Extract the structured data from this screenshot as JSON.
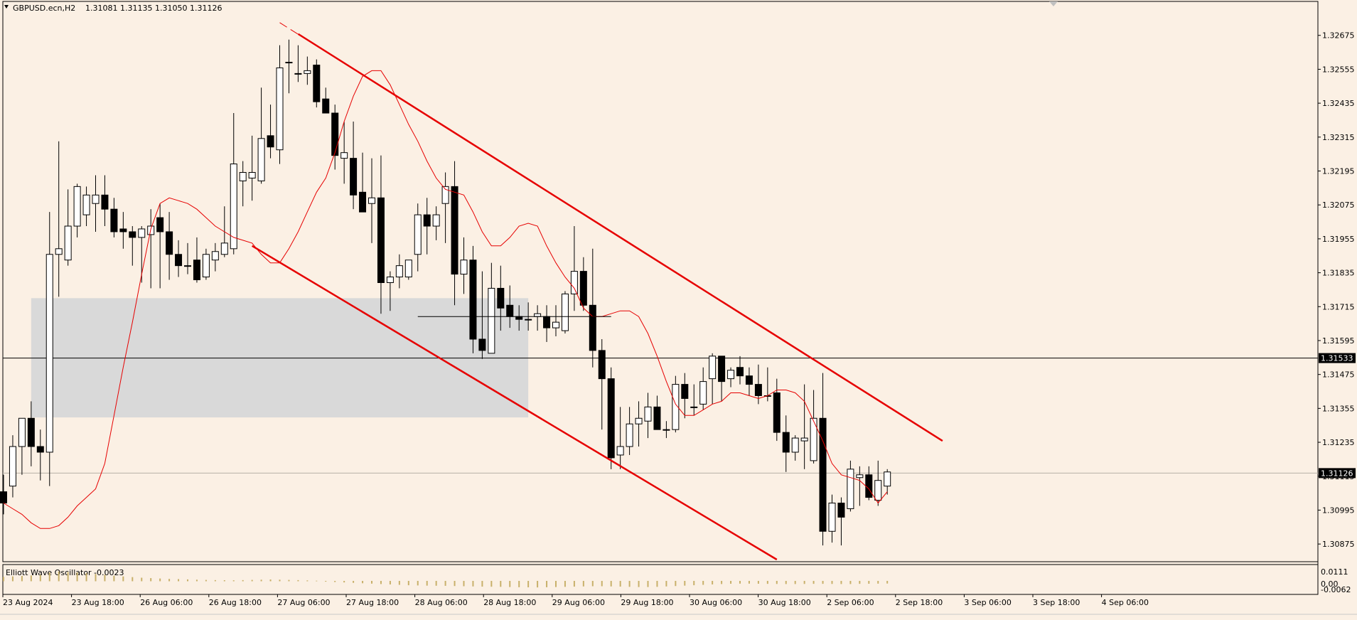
{
  "header": {
    "title": "GBPUSD.ecn,H2",
    "ohlc": "1.31081 1.31135 1.31050 1.31126"
  },
  "indicator": {
    "label": "Elliott Wave Oscillator -0.0023",
    "axis_ticks": [
      "0.0111",
      "0.00",
      "-0.0062"
    ]
  },
  "colors": {
    "background": "#fbf0e4",
    "candle": "#000000",
    "trendline": "#e60000",
    "moving_average": "#e60000",
    "zone": "#d9d9d9",
    "oscillator_bar": "#c8b06a"
  },
  "chart_data": {
    "type": "candlestick",
    "symbol": "GBPUSD.ecn",
    "timeframe": "H2",
    "y_range": [
      1.3082,
      1.3278
    ],
    "y_ticks": [
      "1.32675",
      "1.32555",
      "1.32435",
      "1.32315",
      "1.32195",
      "1.32075",
      "1.31955",
      "1.31835",
      "1.31715",
      "1.31595",
      "1.31475",
      "1.31355",
      "1.31235",
      "1.31115",
      "1.30995",
      "1.30875"
    ],
    "price_labels": {
      "horizontal_line": "1.31533",
      "current": "1.31126"
    },
    "x_labels": [
      "23 Aug 2024",
      "23 Aug 18:00",
      "26 Aug 06:00",
      "26 Aug 18:00",
      "27 Aug 06:00",
      "27 Aug 18:00",
      "28 Aug 06:00",
      "28 Aug 18:00",
      "29 Aug 06:00",
      "29 Aug 18:00",
      "30 Aug 06:00",
      "30 Aug 18:00",
      "2 Sep 06:00",
      "2 Sep 18:00",
      "3 Sep 06:00",
      "3 Sep 18:00",
      "4 Sep 06:00"
    ],
    "candles": [
      {
        "o": 1.3106,
        "h": 1.3112,
        "l": 1.3098,
        "c": 1.3102
      },
      {
        "o": 1.3108,
        "h": 1.3126,
        "l": 1.3104,
        "c": 1.3122
      },
      {
        "o": 1.3122,
        "h": 1.3132,
        "l": 1.3112,
        "c": 1.3132
      },
      {
        "o": 1.3132,
        "h": 1.3138,
        "l": 1.3115,
        "c": 1.3122
      },
      {
        "o": 1.3122,
        "h": 1.3128,
        "l": 1.311,
        "c": 1.312
      },
      {
        "o": 1.312,
        "h": 1.3205,
        "l": 1.3108,
        "c": 1.319
      },
      {
        "o": 1.319,
        "h": 1.323,
        "l": 1.3175,
        "c": 1.3192
      },
      {
        "o": 1.3188,
        "h": 1.3213,
        "l": 1.3186,
        "c": 1.32
      },
      {
        "o": 1.32,
        "h": 1.3215,
        "l": 1.3196,
        "c": 1.3214
      },
      {
        "o": 1.3204,
        "h": 1.3214,
        "l": 1.32,
        "c": 1.3211
      },
      {
        "o": 1.3208,
        "h": 1.3218,
        "l": 1.3198,
        "c": 1.3211
      },
      {
        "o": 1.3211,
        "h": 1.3218,
        "l": 1.32,
        "c": 1.3206
      },
      {
        "o": 1.3206,
        "h": 1.321,
        "l": 1.3196,
        "c": 1.3198
      },
      {
        "o": 1.3199,
        "h": 1.3205,
        "l": 1.3192,
        "c": 1.3198
      },
      {
        "o": 1.3198,
        "h": 1.32,
        "l": 1.3186,
        "c": 1.3196
      },
      {
        "o": 1.3196,
        "h": 1.32,
        "l": 1.318,
        "c": 1.3199
      },
      {
        "o": 1.3197,
        "h": 1.3206,
        "l": 1.3178,
        "c": 1.32
      },
      {
        "o": 1.3203,
        "h": 1.3208,
        "l": 1.3178,
        "c": 1.3198
      },
      {
        "o": 1.3198,
        "h": 1.3205,
        "l": 1.3181,
        "c": 1.319
      },
      {
        "o": 1.319,
        "h": 1.3195,
        "l": 1.3182,
        "c": 1.3186
      },
      {
        "o": 1.3186,
        "h": 1.3194,
        "l": 1.3183,
        "c": 1.3186
      },
      {
        "o": 1.3188,
        "h": 1.3196,
        "l": 1.318,
        "c": 1.3181
      },
      {
        "o": 1.3182,
        "h": 1.3192,
        "l": 1.3181,
        "c": 1.319
      },
      {
        "o": 1.3188,
        "h": 1.3194,
        "l": 1.3184,
        "c": 1.3191
      },
      {
        "o": 1.319,
        "h": 1.3207,
        "l": 1.3189,
        "c": 1.3194
      },
      {
        "o": 1.3192,
        "h": 1.324,
        "l": 1.319,
        "c": 1.3222
      },
      {
        "o": 1.3216,
        "h": 1.3223,
        "l": 1.3207,
        "c": 1.3219
      },
      {
        "o": 1.3217,
        "h": 1.3232,
        "l": 1.3209,
        "c": 1.3219
      },
      {
        "o": 1.3216,
        "h": 1.3249,
        "l": 1.3215,
        "c": 1.3231
      },
      {
        "o": 1.3232,
        "h": 1.3243,
        "l": 1.3224,
        "c": 1.3228
      },
      {
        "o": 1.3227,
        "h": 1.3264,
        "l": 1.3222,
        "c": 1.3256
      },
      {
        "o": 1.3258,
        "h": 1.3266,
        "l": 1.3247,
        "c": 1.3258
      },
      {
        "o": 1.3254,
        "h": 1.3264,
        "l": 1.3251,
        "c": 1.3254
      },
      {
        "o": 1.3254,
        "h": 1.326,
        "l": 1.325,
        "c": 1.3255
      },
      {
        "o": 1.3257,
        "h": 1.3259,
        "l": 1.3242,
        "c": 1.3244
      },
      {
        "o": 1.3245,
        "h": 1.3249,
        "l": 1.324,
        "c": 1.324
      },
      {
        "o": 1.324,
        "h": 1.3243,
        "l": 1.322,
        "c": 1.3225
      },
      {
        "o": 1.3224,
        "h": 1.3237,
        "l": 1.3215,
        "c": 1.3226
      },
      {
        "o": 1.3224,
        "h": 1.3237,
        "l": 1.3206,
        "c": 1.3211
      },
      {
        "o": 1.3212,
        "h": 1.3226,
        "l": 1.3205,
        "c": 1.3205
      },
      {
        "o": 1.3208,
        "h": 1.3224,
        "l": 1.3194,
        "c": 1.321
      },
      {
        "o": 1.321,
        "h": 1.3225,
        "l": 1.3169,
        "c": 1.318
      },
      {
        "o": 1.318,
        "h": 1.3184,
        "l": 1.317,
        "c": 1.3182
      },
      {
        "o": 1.3182,
        "h": 1.319,
        "l": 1.3178,
        "c": 1.3186
      },
      {
        "o": 1.3182,
        "h": 1.3188,
        "l": 1.3181,
        "c": 1.3188
      },
      {
        "o": 1.319,
        "h": 1.3208,
        "l": 1.3184,
        "c": 1.3204
      },
      {
        "o": 1.3204,
        "h": 1.321,
        "l": 1.319,
        "c": 1.32
      },
      {
        "o": 1.32,
        "h": 1.3207,
        "l": 1.3195,
        "c": 1.3204
      },
      {
        "o": 1.3208,
        "h": 1.3219,
        "l": 1.3194,
        "c": 1.3214
      },
      {
        "o": 1.3214,
        "h": 1.3223,
        "l": 1.3172,
        "c": 1.3183
      },
      {
        "o": 1.3183,
        "h": 1.3196,
        "l": 1.3176,
        "c": 1.3188
      },
      {
        "o": 1.3188,
        "h": 1.3193,
        "l": 1.3155,
        "c": 1.316
      },
      {
        "o": 1.316,
        "h": 1.3184,
        "l": 1.3153,
        "c": 1.3156
      },
      {
        "o": 1.3155,
        "h": 1.3187,
        "l": 1.3155,
        "c": 1.3178
      },
      {
        "o": 1.3178,
        "h": 1.3186,
        "l": 1.3163,
        "c": 1.3171
      },
      {
        "o": 1.3172,
        "h": 1.3179,
        "l": 1.3164,
        "c": 1.3168
      },
      {
        "o": 1.3168,
        "h": 1.3172,
        "l": 1.3163,
        "c": 1.3167
      },
      {
        "o": 1.3167,
        "h": 1.3173,
        "l": 1.3163,
        "c": 1.3167
      },
      {
        "o": 1.3168,
        "h": 1.3172,
        "l": 1.3163,
        "c": 1.3169
      },
      {
        "o": 1.3168,
        "h": 1.3172,
        "l": 1.3159,
        "c": 1.3164
      },
      {
        "o": 1.3164,
        "h": 1.3172,
        "l": 1.3161,
        "c": 1.3166
      },
      {
        "o": 1.3163,
        "h": 1.3177,
        "l": 1.3162,
        "c": 1.3176
      },
      {
        "o": 1.3176,
        "h": 1.32,
        "l": 1.317,
        "c": 1.3184
      },
      {
        "o": 1.3184,
        "h": 1.3189,
        "l": 1.317,
        "c": 1.3172
      },
      {
        "o": 1.3172,
        "h": 1.3192,
        "l": 1.315,
        "c": 1.3156
      },
      {
        "o": 1.3156,
        "h": 1.316,
        "l": 1.3128,
        "c": 1.3146
      },
      {
        "o": 1.3146,
        "h": 1.315,
        "l": 1.3114,
        "c": 1.3118
      },
      {
        "o": 1.3119,
        "h": 1.3136,
        "l": 1.3114,
        "c": 1.3122
      },
      {
        "o": 1.3122,
        "h": 1.3136,
        "l": 1.3119,
        "c": 1.313
      },
      {
        "o": 1.313,
        "h": 1.3138,
        "l": 1.3122,
        "c": 1.3132
      },
      {
        "o": 1.3131,
        "h": 1.3141,
        "l": 1.3125,
        "c": 1.3136
      },
      {
        "o": 1.3136,
        "h": 1.314,
        "l": 1.3128,
        "c": 1.3128
      },
      {
        "o": 1.3128,
        "h": 1.3131,
        "l": 1.3125,
        "c": 1.3128
      },
      {
        "o": 1.3128,
        "h": 1.3147,
        "l": 1.3127,
        "c": 1.3144
      },
      {
        "o": 1.3144,
        "h": 1.3148,
        "l": 1.3132,
        "c": 1.3139
      },
      {
        "o": 1.3136,
        "h": 1.3144,
        "l": 1.3133,
        "c": 1.3136
      },
      {
        "o": 1.3137,
        "h": 1.315,
        "l": 1.3135,
        "c": 1.3145
      },
      {
        "o": 1.3146,
        "h": 1.3155,
        "l": 1.3137,
        "c": 1.3154
      },
      {
        "o": 1.3154,
        "h": 1.3154,
        "l": 1.3138,
        "c": 1.3145
      },
      {
        "o": 1.3146,
        "h": 1.315,
        "l": 1.3143,
        "c": 1.3149
      },
      {
        "o": 1.315,
        "h": 1.3154,
        "l": 1.3144,
        "c": 1.3147
      },
      {
        "o": 1.3147,
        "h": 1.315,
        "l": 1.314,
        "c": 1.3144
      },
      {
        "o": 1.3144,
        "h": 1.3151,
        "l": 1.3137,
        "c": 1.314
      },
      {
        "o": 1.314,
        "h": 1.315,
        "l": 1.3138,
        "c": 1.314
      },
      {
        "o": 1.3141,
        "h": 1.3146,
        "l": 1.3124,
        "c": 1.3127
      },
      {
        "o": 1.3127,
        "h": 1.3133,
        "l": 1.3113,
        "c": 1.312
      },
      {
        "o": 1.312,
        "h": 1.3126,
        "l": 1.3117,
        "c": 1.3125
      },
      {
        "o": 1.3124,
        "h": 1.3144,
        "l": 1.3114,
        "c": 1.3125
      },
      {
        "o": 1.3117,
        "h": 1.3142,
        "l": 1.3116,
        "c": 1.3132
      },
      {
        "o": 1.3132,
        "h": 1.3148,
        "l": 1.3087,
        "c": 1.3092
      },
      {
        "o": 1.3092,
        "h": 1.3105,
        "l": 1.3088,
        "c": 1.3102
      },
      {
        "o": 1.3102,
        "h": 1.3104,
        "l": 1.3087,
        "c": 1.3097
      },
      {
        "o": 1.31,
        "h": 1.3117,
        "l": 1.3099,
        "c": 1.3114
      },
      {
        "o": 1.3111,
        "h": 1.3115,
        "l": 1.3101,
        "c": 1.3112
      },
      {
        "o": 1.3112,
        "h": 1.3115,
        "l": 1.3103,
        "c": 1.3104
      },
      {
        "o": 1.3103,
        "h": 1.3117,
        "l": 1.3101,
        "c": 1.311
      },
      {
        "o": 1.3108,
        "h": 1.3114,
        "l": 1.3105,
        "c": 1.3113
      }
    ],
    "moving_average": [
      1.3102,
      1.31,
      1.3098,
      1.3095,
      1.3093,
      1.3093,
      1.3094,
      1.3097,
      1.3101,
      1.3104,
      1.3107,
      1.3116,
      1.3133,
      1.315,
      1.3166,
      1.3183,
      1.3199,
      1.3208,
      1.321,
      1.3209,
      1.3208,
      1.3206,
      1.3203,
      1.32,
      1.3198,
      1.3196,
      1.3195,
      1.3194,
      1.319,
      1.3187,
      1.3187,
      1.3192,
      1.3198,
      1.3205,
      1.3212,
      1.3217,
      1.3226,
      1.3237,
      1.3246,
      1.3253,
      1.3255,
      1.3255,
      1.325,
      1.3243,
      1.3236,
      1.323,
      1.3223,
      1.3217,
      1.3213,
      1.3212,
      1.3211,
      1.3205,
      1.3198,
      1.3193,
      1.3193,
      1.3196,
      1.32,
      1.3201,
      1.32,
      1.3193,
      1.3187,
      1.3182,
      1.3178,
      1.3171,
      1.3168,
      1.3168,
      1.3169,
      1.317,
      1.317,
      1.3168,
      1.3162,
      1.3154,
      1.3145,
      1.3137,
      1.3133,
      1.3133,
      1.3135,
      1.3137,
      1.3138,
      1.3141,
      1.3141,
      1.314,
      1.3139,
      1.314,
      1.3142,
      1.3142,
      1.3141,
      1.3138,
      1.3131,
      1.3124,
      1.3116,
      1.3112,
      1.3111,
      1.311,
      1.3107,
      1.3102,
      1.3106
    ],
    "oscillator": [
      0.004,
      0.0045,
      0.005,
      0.0055,
      0.006,
      0.0085,
      0.0095,
      0.009,
      0.0085,
      0.0078,
      0.007,
      0.0062,
      0.0052,
      0.0045,
      0.0038,
      0.0032,
      0.0028,
      0.0024,
      0.002,
      0.0018,
      0.0015,
      0.0012,
      0.001,
      0.0008,
      0.0007,
      0.0006,
      0.0008,
      0.001,
      0.0012,
      0.0014,
      0.0012,
      0.001,
      0.0008,
      0.0005,
      0.0002,
      -0.0004,
      -0.0008,
      -0.0012,
      -0.0016,
      -0.002,
      -0.0024,
      -0.0028,
      -0.0032,
      -0.0036,
      -0.004,
      -0.0042,
      -0.0044,
      -0.0045,
      -0.0046,
      -0.0048,
      -0.005,
      -0.0052,
      -0.0054,
      -0.0055,
      -0.0056,
      -0.0058,
      -0.006,
      -0.0061,
      -0.0062,
      -0.006,
      -0.0058,
      -0.0056,
      -0.0054,
      -0.0052,
      -0.005,
      -0.005,
      -0.0052,
      -0.0054,
      -0.0056,
      -0.0058,
      -0.0058,
      -0.0056,
      -0.0052,
      -0.0048,
      -0.0044,
      -0.004,
      -0.0036,
      -0.0032,
      -0.0028,
      -0.0025,
      -0.0024,
      -0.0024,
      -0.0025,
      -0.0026,
      -0.0027,
      -0.0028,
      -0.0028,
      -0.0027,
      -0.0026,
      -0.0026,
      -0.0027,
      -0.0028,
      -0.0028,
      -0.0026,
      -0.0025,
      -0.0024,
      -0.0023
    ],
    "overlays": {
      "upper_trendline": {
        "from": {
          "bar": 32,
          "price": 1.3268
        },
        "to": {
          "bar": 102,
          "price": 1.3124
        }
      },
      "upper_dashed": {
        "from": {
          "bar": 30,
          "price": 1.3272
        },
        "to": {
          "bar": 101,
          "price": 1.3126
        }
      },
      "lower_trendline": {
        "from": {
          "bar": 27,
          "price": 1.3193
        },
        "to": {
          "bar": 84,
          "price": 1.3082
        }
      },
      "horizontal_segment": {
        "from_bar": 45,
        "to_bar": 66,
        "price": 1.3168
      },
      "zone": {
        "from_bar": 3,
        "to_bar": 57,
        "top": 1.31745,
        "bottom": 1.31323
      }
    }
  }
}
